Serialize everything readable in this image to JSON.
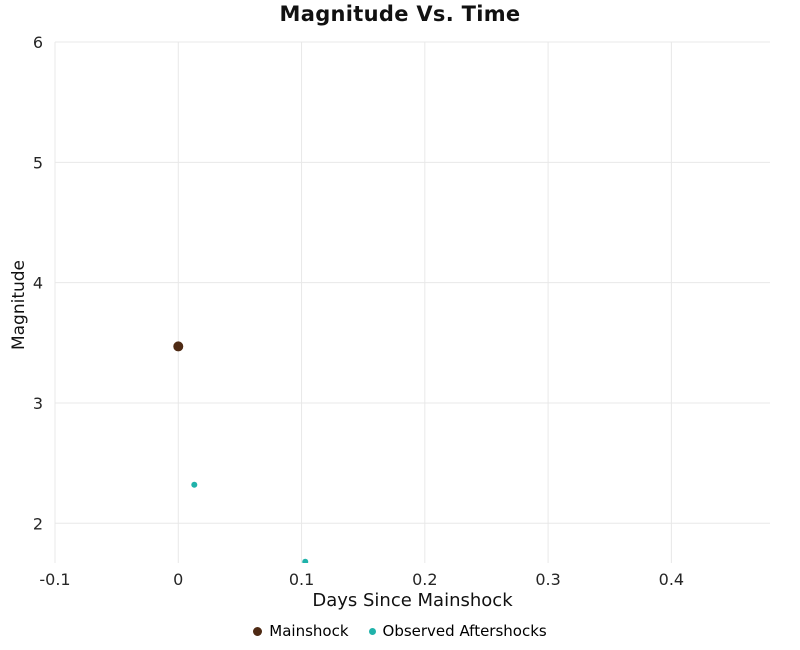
{
  "colors": {
    "mainshock": "#4e2a14",
    "aftershock": "#20b2aa",
    "grid": "#e8e8e8",
    "tick_text": "#262626",
    "title_text": "#111111"
  },
  "chart_data": {
    "type": "scatter",
    "title": "Magnitude Vs. Time",
    "xlabel": "Days Since Mainshock",
    "ylabel": "Magnitude",
    "xlim": [
      -0.1,
      0.48
    ],
    "ylim": [
      1.67,
      6
    ],
    "xticks": [
      -0.1,
      0,
      0.1,
      0.2,
      0.3,
      0.4
    ],
    "xtick_labels": [
      "-0.1",
      "0",
      "0.1",
      "0.2",
      "0.3",
      "0.4"
    ],
    "yticks": [
      2,
      3,
      4,
      5,
      6
    ],
    "ytick_labels": [
      "2",
      "3",
      "4",
      "5",
      "6"
    ],
    "grid": true,
    "legend_position": "bottom",
    "series": [
      {
        "name": "Mainshock",
        "color": "#4e2a14",
        "marker_size": 5,
        "points": [
          {
            "x": 0,
            "y": 3.47
          }
        ]
      },
      {
        "name": "Observed Aftershocks",
        "color": "#20b2aa",
        "marker_size": 3,
        "points": [
          {
            "x": 0.013,
            "y": 2.32
          },
          {
            "x": 0.103,
            "y": 1.68
          }
        ]
      }
    ]
  }
}
